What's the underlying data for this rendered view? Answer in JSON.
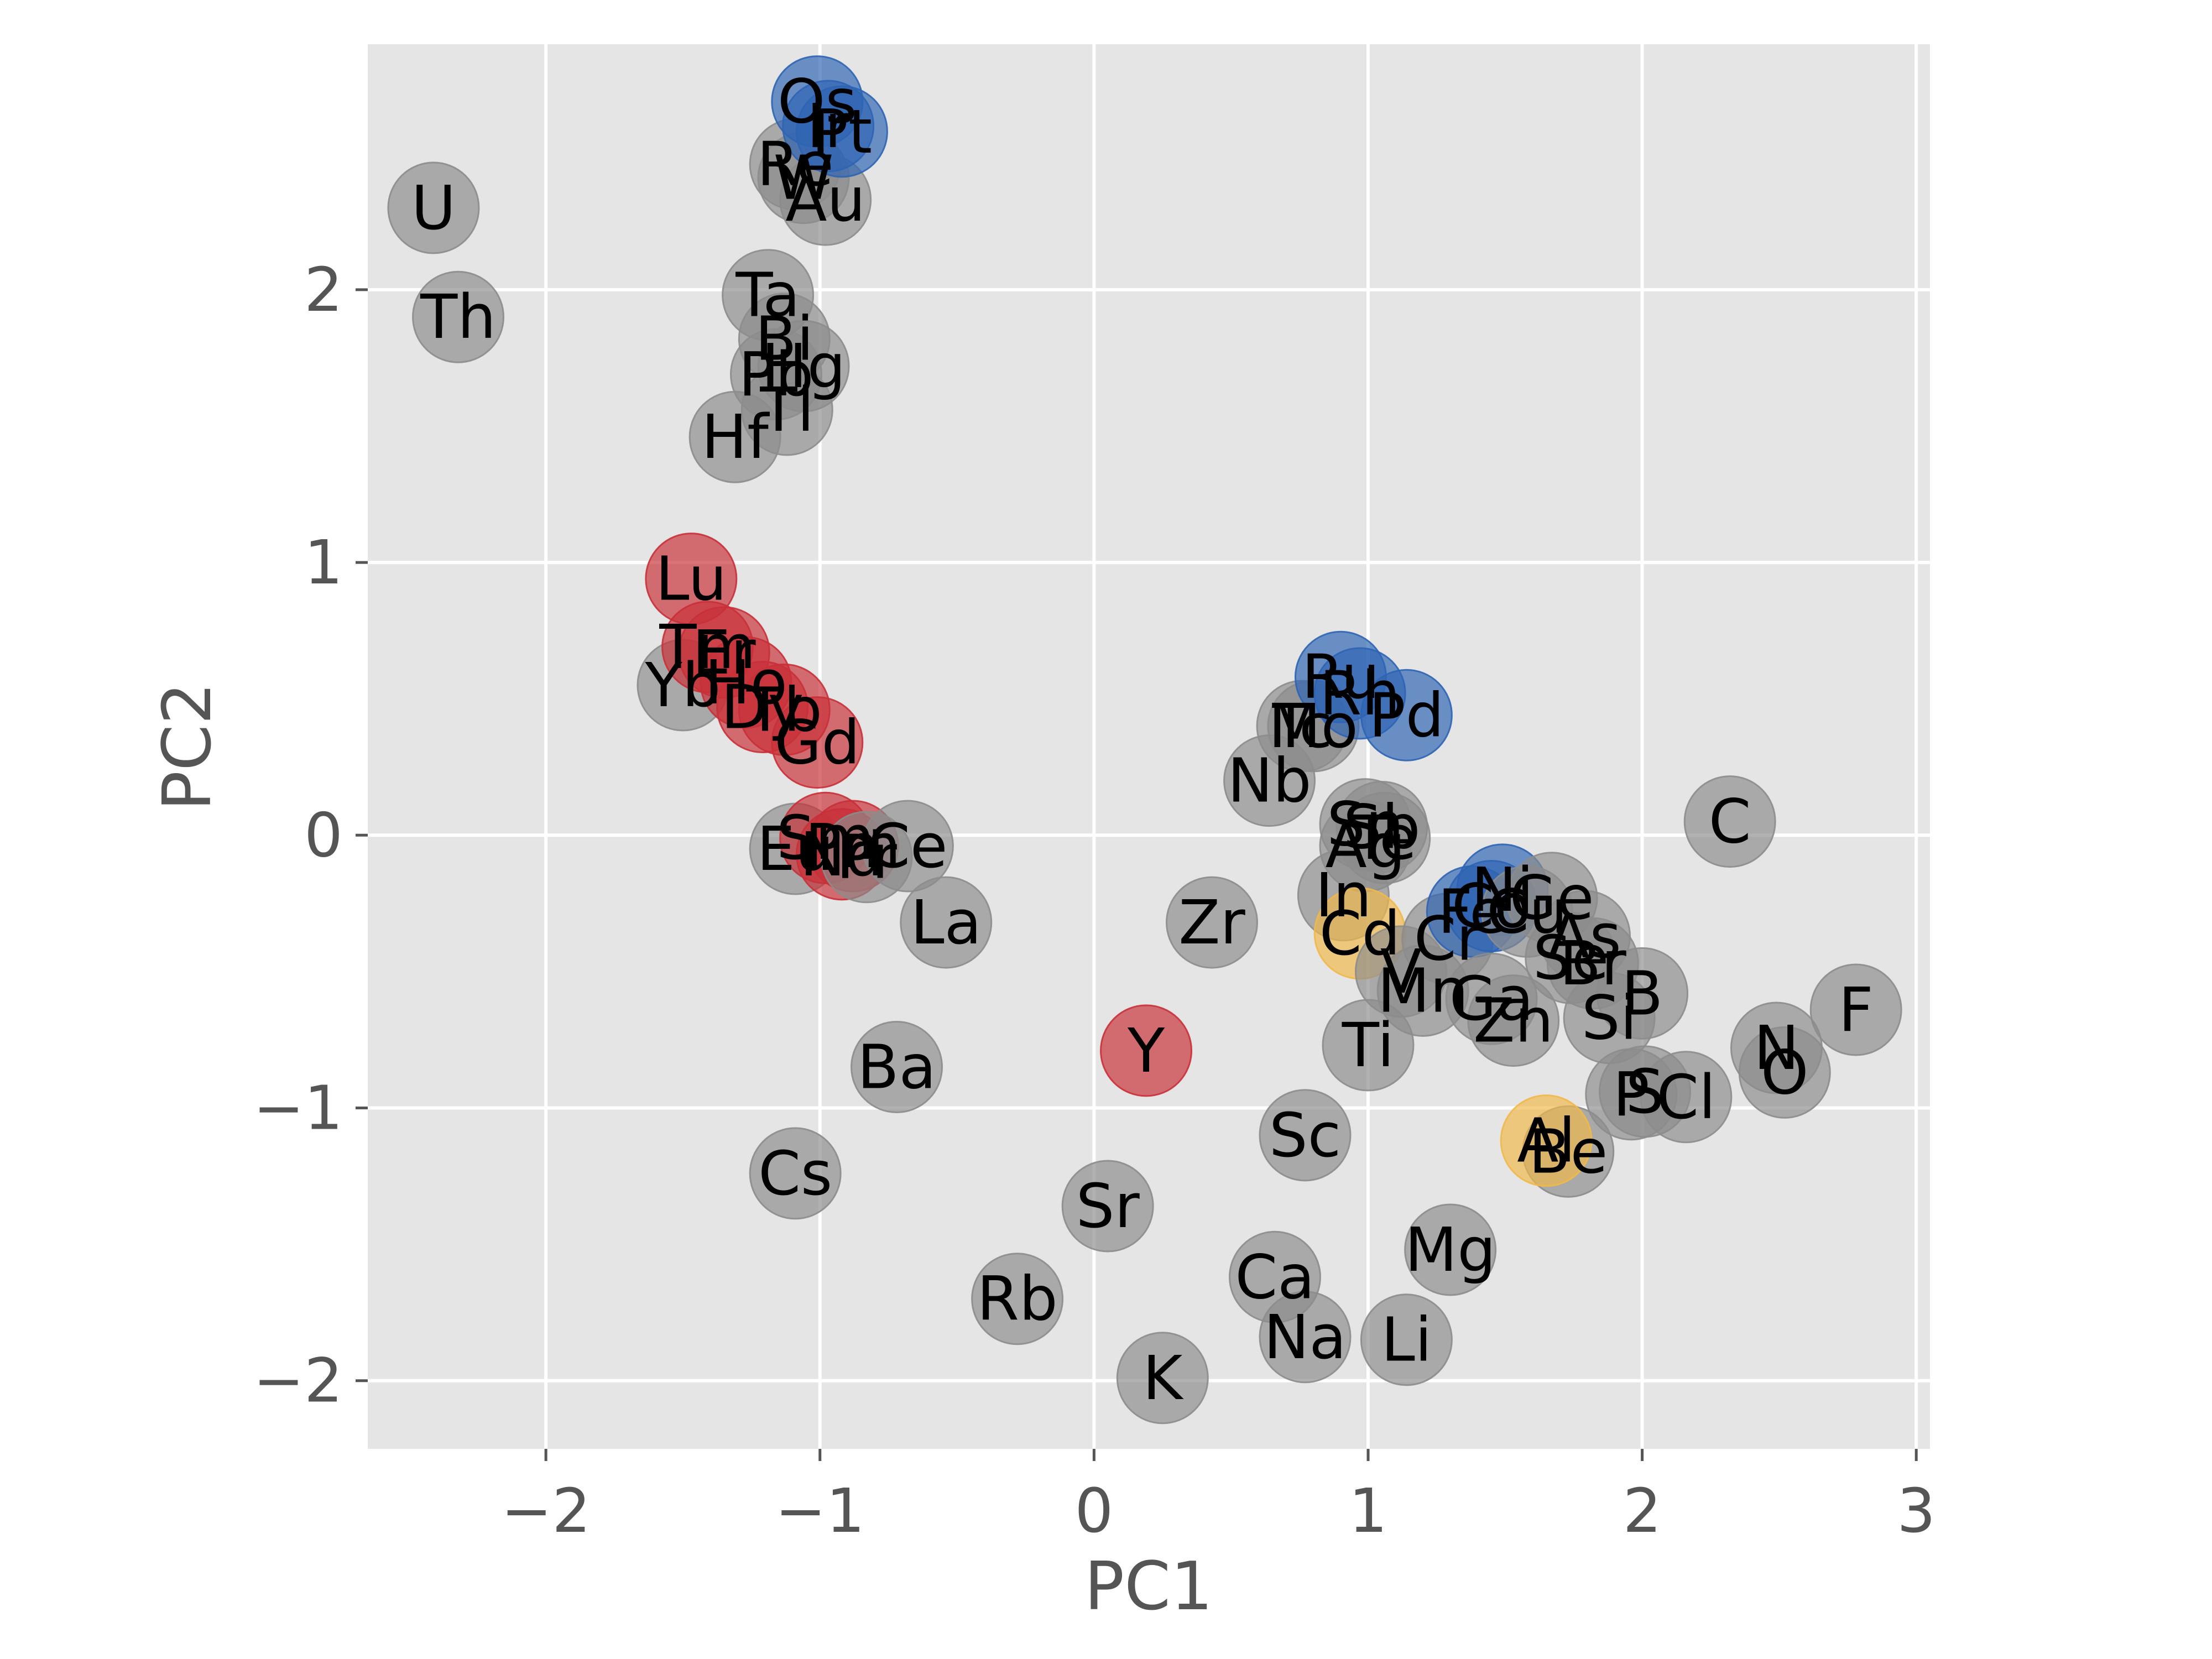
{
  "chart_data": {
    "type": "scatter",
    "title": "",
    "xlabel": "PC1",
    "ylabel": "PC2",
    "xlim": [
      -2.65,
      3.05
    ],
    "ylim": [
      -2.25,
      2.9
    ],
    "grid": true,
    "x_ticks": [
      -2,
      -1,
      0,
      1,
      2,
      3
    ],
    "x_tick_labels": [
      "−2",
      "−1",
      "0",
      "1",
      "2",
      "3"
    ],
    "y_ticks": [
      -2,
      -1,
      0,
      1,
      2
    ],
    "y_tick_labels": [
      "−2",
      "−1",
      "0",
      "1",
      "2"
    ],
    "colors": {
      "grey": "#8c8c8c",
      "blue": "#2e64b4",
      "red": "#c93038",
      "yellow": "#f0b84a",
      "background": "#e5e5e5",
      "grid": "#ffffff"
    },
    "points": [
      {
        "label": "U",
        "x": -2.41,
        "y": 2.3,
        "color": "grey"
      },
      {
        "label": "Th",
        "x": -2.32,
        "y": 1.9,
        "color": "grey"
      },
      {
        "label": "Re",
        "x": -1.09,
        "y": 2.46,
        "color": "grey"
      },
      {
        "label": "W",
        "x": -1.06,
        "y": 2.41,
        "color": "grey"
      },
      {
        "label": "Au",
        "x": -0.98,
        "y": 2.33,
        "color": "grey"
      },
      {
        "label": "Os",
        "x": -1.01,
        "y": 2.69,
        "color": "blue"
      },
      {
        "label": "Ir",
        "x": -0.97,
        "y": 2.6,
        "color": "blue"
      },
      {
        "label": "Pt",
        "x": -0.92,
        "y": 2.58,
        "color": "blue"
      },
      {
        "label": "Ta",
        "x": -1.19,
        "y": 1.98,
        "color": "grey"
      },
      {
        "label": "Bi",
        "x": -1.13,
        "y": 1.82,
        "color": "grey"
      },
      {
        "label": "Hg",
        "x": -1.06,
        "y": 1.72,
        "color": "grey"
      },
      {
        "label": "Pb",
        "x": -1.16,
        "y": 1.69,
        "color": "grey"
      },
      {
        "label": "Tl",
        "x": -1.12,
        "y": 1.56,
        "color": "grey"
      },
      {
        "label": "Hf",
        "x": -1.31,
        "y": 1.46,
        "color": "grey"
      },
      {
        "label": "Lu",
        "x": -1.47,
        "y": 0.94,
        "color": "red"
      },
      {
        "label": "Yb",
        "x": -1.5,
        "y": 0.55,
        "color": "grey"
      },
      {
        "label": "Tm",
        "x": -1.41,
        "y": 0.69,
        "color": "red"
      },
      {
        "label": "Er",
        "x": -1.35,
        "y": 0.67,
        "color": "red"
      },
      {
        "label": "Ho",
        "x": -1.27,
        "y": 0.56,
        "color": "red"
      },
      {
        "label": "Dy",
        "x": -1.21,
        "y": 0.47,
        "color": "red"
      },
      {
        "label": "Tb",
        "x": -1.13,
        "y": 0.46,
        "color": "red"
      },
      {
        "label": "Gd",
        "x": -1.01,
        "y": 0.34,
        "color": "red"
      },
      {
        "label": "Eu",
        "x": -1.09,
        "y": -0.05,
        "color": "grey"
      },
      {
        "label": "Sm",
        "x": -0.98,
        "y": -0.01,
        "color": "red"
      },
      {
        "label": "Pm",
        "x": -0.88,
        "y": -0.04,
        "color": "red"
      },
      {
        "label": "Nd",
        "x": -0.92,
        "y": -0.07,
        "color": "red"
      },
      {
        "label": "Pr",
        "x": -0.83,
        "y": -0.08,
        "color": "grey"
      },
      {
        "label": "Ce",
        "x": -0.68,
        "y": -0.04,
        "color": "grey"
      },
      {
        "label": "La",
        "x": -0.54,
        "y": -0.32,
        "color": "grey"
      },
      {
        "label": "Ba",
        "x": -0.72,
        "y": -0.85,
        "color": "grey"
      },
      {
        "label": "Cs",
        "x": -1.09,
        "y": -1.24,
        "color": "grey"
      },
      {
        "label": "Y",
        "x": 0.19,
        "y": -0.79,
        "color": "red"
      },
      {
        "label": "Rb",
        "x": -0.28,
        "y": -1.7,
        "color": "grey"
      },
      {
        "label": "Sr",
        "x": 0.05,
        "y": -1.36,
        "color": "grey"
      },
      {
        "label": "K",
        "x": 0.25,
        "y": -1.99,
        "color": "grey"
      },
      {
        "label": "Zr",
        "x": 0.43,
        "y": -0.32,
        "color": "grey"
      },
      {
        "label": "Nb",
        "x": 0.64,
        "y": 0.2,
        "color": "grey"
      },
      {
        "label": "Tc",
        "x": 0.76,
        "y": 0.4,
        "color": "grey"
      },
      {
        "label": "Mo",
        "x": 0.8,
        "y": 0.4,
        "color": "grey"
      },
      {
        "label": "Ru",
        "x": 0.9,
        "y": 0.58,
        "color": "blue"
      },
      {
        "label": "Rh",
        "x": 0.97,
        "y": 0.52,
        "color": "blue"
      },
      {
        "label": "Pd",
        "x": 1.14,
        "y": 0.44,
        "color": "blue"
      },
      {
        "label": "Sn",
        "x": 0.99,
        "y": 0.04,
        "color": "grey"
      },
      {
        "label": "Sb",
        "x": 1.05,
        "y": 0.03,
        "color": "grey"
      },
      {
        "label": "Te",
        "x": 1.06,
        "y": -0.01,
        "color": "grey"
      },
      {
        "label": "Ag",
        "x": 0.99,
        "y": -0.04,
        "color": "grey"
      },
      {
        "label": "In",
        "x": 0.91,
        "y": -0.22,
        "color": "grey"
      },
      {
        "label": "Cd",
        "x": 0.97,
        "y": -0.36,
        "color": "yellow"
      },
      {
        "label": "V",
        "x": 1.12,
        "y": -0.5,
        "color": "grey"
      },
      {
        "label": "Mn",
        "x": 1.2,
        "y": -0.57,
        "color": "grey"
      },
      {
        "label": "Cr",
        "x": 1.29,
        "y": -0.38,
        "color": "grey"
      },
      {
        "label": "Fe",
        "x": 1.38,
        "y": -0.28,
        "color": "blue"
      },
      {
        "label": "Co",
        "x": 1.45,
        "y": -0.26,
        "color": "blue"
      },
      {
        "label": "Ni",
        "x": 1.49,
        "y": -0.2,
        "color": "blue"
      },
      {
        "label": "Cu",
        "x": 1.58,
        "y": -0.28,
        "color": "grey"
      },
      {
        "label": "Ge",
        "x": 1.67,
        "y": -0.23,
        "color": "grey"
      },
      {
        "label": "As",
        "x": 1.79,
        "y": -0.37,
        "color": "grey"
      },
      {
        "label": "Se",
        "x": 1.74,
        "y": -0.45,
        "color": "grey"
      },
      {
        "label": "Br",
        "x": 1.82,
        "y": -0.47,
        "color": "grey"
      },
      {
        "label": "Ga",
        "x": 1.45,
        "y": -0.6,
        "color": "grey"
      },
      {
        "label": "Zn",
        "x": 1.53,
        "y": -0.68,
        "color": "grey"
      },
      {
        "label": "B",
        "x": 2.0,
        "y": -0.58,
        "color": "grey"
      },
      {
        "label": "Si",
        "x": 1.88,
        "y": -0.67,
        "color": "grey"
      },
      {
        "label": "Ti",
        "x": 1.0,
        "y": -0.77,
        "color": "grey"
      },
      {
        "label": "P",
        "x": 1.96,
        "y": -0.95,
        "color": "grey"
      },
      {
        "label": "S",
        "x": 2.01,
        "y": -0.94,
        "color": "grey"
      },
      {
        "label": "Cl",
        "x": 2.16,
        "y": -0.96,
        "color": "grey"
      },
      {
        "label": "C",
        "x": 2.32,
        "y": 0.05,
        "color": "grey"
      },
      {
        "label": "N",
        "x": 2.49,
        "y": -0.78,
        "color": "grey"
      },
      {
        "label": "O",
        "x": 2.52,
        "y": -0.87,
        "color": "grey"
      },
      {
        "label": "F",
        "x": 2.78,
        "y": -0.64,
        "color": "grey"
      },
      {
        "label": "Sc",
        "x": 0.77,
        "y": -1.1,
        "color": "grey"
      },
      {
        "label": "Be",
        "x": 1.73,
        "y": -1.16,
        "color": "grey"
      },
      {
        "label": "Al",
        "x": 1.65,
        "y": -1.12,
        "color": "yellow"
      },
      {
        "label": "Mg",
        "x": 1.3,
        "y": -1.52,
        "color": "grey"
      },
      {
        "label": "Ca",
        "x": 0.66,
        "y": -1.62,
        "color": "grey"
      },
      {
        "label": "Na",
        "x": 0.77,
        "y": -1.84,
        "color": "grey"
      },
      {
        "label": "Li",
        "x": 1.14,
        "y": -1.85,
        "color": "grey"
      }
    ]
  }
}
